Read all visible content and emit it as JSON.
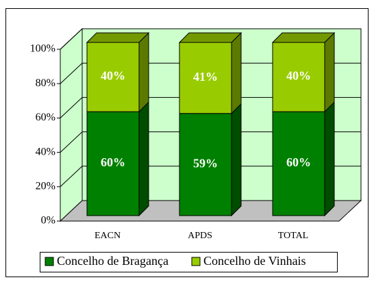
{
  "chart_data": {
    "type": "bar3d_stacked",
    "categories": [
      "EACN",
      "APDS",
      "TOTAL"
    ],
    "series": [
      {
        "name": "Concelho de Bragança",
        "color": "#008000",
        "values": [
          60,
          59,
          60
        ],
        "value_labels": [
          "60%",
          "59%",
          "60%"
        ]
      },
      {
        "name": "Concelho de Vinhais",
        "color": "#99cc00",
        "values": [
          40,
          41,
          40
        ],
        "value_labels": [
          "40%",
          "41%",
          "40%"
        ]
      }
    ],
    "ylim": [
      0,
      100
    ],
    "yticks": [
      {
        "value": 0,
        "label": "0%"
      },
      {
        "value": 20,
        "label": "20%"
      },
      {
        "value": 40,
        "label": "40%"
      },
      {
        "value": 60,
        "label": "60%"
      },
      {
        "value": 80,
        "label": "80%"
      },
      {
        "value": 100,
        "label": "100%"
      }
    ],
    "grid": true,
    "legend": "bottom"
  }
}
